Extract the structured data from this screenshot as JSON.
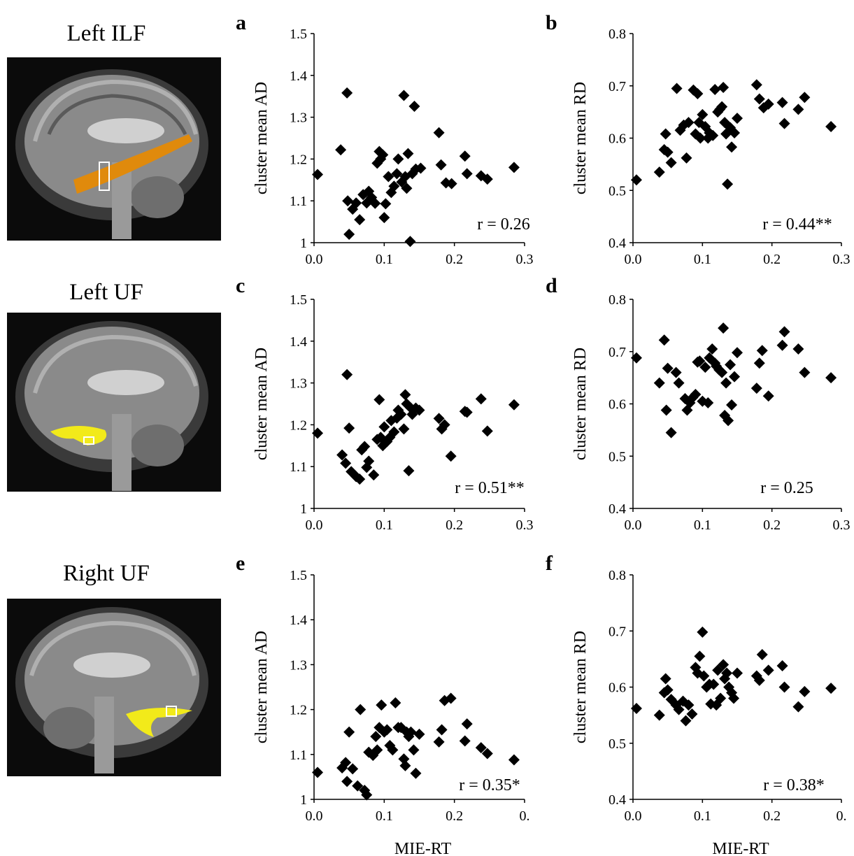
{
  "rows": [
    {
      "title": "Left ILF",
      "tract_color": "#e08a0c"
    },
    {
      "title": "Left UF",
      "tract_color": "#f2ea1a"
    },
    {
      "title": "Right UF",
      "tract_color": "#f2ea1a"
    }
  ],
  "chart_data": [
    {
      "id": "a",
      "type": "scatter",
      "title": "",
      "xlabel": "",
      "ylabel": "cluster mean AD",
      "annotation": "r = 0.26",
      "xlim": [
        0,
        0.3
      ],
      "ylim": [
        1,
        1.5
      ],
      "xticks": [
        "0.0",
        "0.1",
        "0.2",
        "0.3"
      ],
      "yticks": [
        "1",
        "1.1",
        "1.2",
        "1.3",
        "1.4",
        "1.5"
      ],
      "points": [
        [
          0.005,
          1.163
        ],
        [
          0.038,
          1.222
        ],
        [
          0.047,
          1.358
        ],
        [
          0.048,
          1.1
        ],
        [
          0.05,
          1.02
        ],
        [
          0.055,
          1.08
        ],
        [
          0.06,
          1.095
        ],
        [
          0.065,
          1.055
        ],
        [
          0.07,
          1.115
        ],
        [
          0.075,
          1.095
        ],
        [
          0.078,
          1.123
        ],
        [
          0.082,
          1.108
        ],
        [
          0.087,
          1.094
        ],
        [
          0.09,
          1.19
        ],
        [
          0.093,
          1.218
        ],
        [
          0.095,
          1.2
        ],
        [
          0.098,
          1.21
        ],
        [
          0.1,
          1.06
        ],
        [
          0.102,
          1.093
        ],
        [
          0.106,
          1.158
        ],
        [
          0.11,
          1.12
        ],
        [
          0.114,
          1.135
        ],
        [
          0.118,
          1.165
        ],
        [
          0.12,
          1.2
        ],
        [
          0.125,
          1.145
        ],
        [
          0.128,
          1.352
        ],
        [
          0.13,
          1.158
        ],
        [
          0.132,
          1.13
        ],
        [
          0.134,
          1.213
        ],
        [
          0.137,
          1.003
        ],
        [
          0.14,
          1.165
        ],
        [
          0.143,
          1.326
        ],
        [
          0.145,
          1.176
        ],
        [
          0.152,
          1.178
        ],
        [
          0.178,
          1.263
        ],
        [
          0.181,
          1.186
        ],
        [
          0.188,
          1.143
        ],
        [
          0.196,
          1.141
        ],
        [
          0.215,
          1.207
        ],
        [
          0.218,
          1.165
        ],
        [
          0.238,
          1.16
        ],
        [
          0.247,
          1.152
        ],
        [
          0.285,
          1.18
        ]
      ]
    },
    {
      "id": "b",
      "type": "scatter",
      "title": "",
      "xlabel": "",
      "ylabel": "cluster mean RD",
      "annotation": "r = 0.44**",
      "xlim": [
        0,
        0.3
      ],
      "ylim": [
        0.4,
        0.8
      ],
      "xticks": [
        "0.0",
        "0.1",
        "0.2",
        "0.3"
      ],
      "yticks": [
        "0.4",
        "0.5",
        "0.6",
        "0.7",
        "0.8"
      ],
      "points": [
        [
          0.005,
          0.52
        ],
        [
          0.038,
          0.535
        ],
        [
          0.045,
          0.578
        ],
        [
          0.047,
          0.608
        ],
        [
          0.05,
          0.573
        ],
        [
          0.055,
          0.553
        ],
        [
          0.063,
          0.695
        ],
        [
          0.068,
          0.615
        ],
        [
          0.073,
          0.625
        ],
        [
          0.077,
          0.562
        ],
        [
          0.08,
          0.63
        ],
        [
          0.087,
          0.692
        ],
        [
          0.09,
          0.608
        ],
        [
          0.093,
          0.685
        ],
        [
          0.095,
          0.63
        ],
        [
          0.097,
          0.6
        ],
        [
          0.1,
          0.645
        ],
        [
          0.104,
          0.622
        ],
        [
          0.108,
          0.6
        ],
        [
          0.11,
          0.61
        ],
        [
          0.115,
          0.605
        ],
        [
          0.118,
          0.693
        ],
        [
          0.122,
          0.65
        ],
        [
          0.125,
          0.655
        ],
        [
          0.128,
          0.66
        ],
        [
          0.13,
          0.697
        ],
        [
          0.132,
          0.63
        ],
        [
          0.134,
          0.608
        ],
        [
          0.136,
          0.512
        ],
        [
          0.14,
          0.62
        ],
        [
          0.142,
          0.583
        ],
        [
          0.146,
          0.61
        ],
        [
          0.15,
          0.638
        ],
        [
          0.178,
          0.702
        ],
        [
          0.182,
          0.675
        ],
        [
          0.188,
          0.658
        ],
        [
          0.195,
          0.665
        ],
        [
          0.215,
          0.668
        ],
        [
          0.218,
          0.628
        ],
        [
          0.238,
          0.655
        ],
        [
          0.247,
          0.678
        ],
        [
          0.285,
          0.622
        ]
      ]
    },
    {
      "id": "c",
      "type": "scatter",
      "title": "",
      "xlabel": "",
      "ylabel": "cluster mean AD",
      "annotation": "r = 0.51**",
      "xlim": [
        0,
        0.3
      ],
      "ylim": [
        1,
        1.5
      ],
      "xticks": [
        "0.0",
        "0.1",
        "0.2",
        "0.3"
      ],
      "yticks": [
        "1",
        "1.1",
        "1.2",
        "1.3",
        "1.4",
        "1.5"
      ],
      "points": [
        [
          0.005,
          1.18
        ],
        [
          0.04,
          1.128
        ],
        [
          0.045,
          1.108
        ],
        [
          0.047,
          1.32
        ],
        [
          0.05,
          1.192
        ],
        [
          0.053,
          1.088
        ],
        [
          0.06,
          1.076
        ],
        [
          0.065,
          1.07
        ],
        [
          0.068,
          1.14
        ],
        [
          0.072,
          1.148
        ],
        [
          0.075,
          1.098
        ],
        [
          0.078,
          1.113
        ],
        [
          0.085,
          1.08
        ],
        [
          0.09,
          1.165
        ],
        [
          0.093,
          1.26
        ],
        [
          0.095,
          1.17
        ],
        [
          0.098,
          1.15
        ],
        [
          0.1,
          1.195
        ],
        [
          0.104,
          1.16
        ],
        [
          0.108,
          1.17
        ],
        [
          0.11,
          1.21
        ],
        [
          0.114,
          1.183
        ],
        [
          0.118,
          1.216
        ],
        [
          0.12,
          1.235
        ],
        [
          0.124,
          1.225
        ],
        [
          0.128,
          1.19
        ],
        [
          0.13,
          1.272
        ],
        [
          0.132,
          1.25
        ],
        [
          0.135,
          1.09
        ],
        [
          0.138,
          1.24
        ],
        [
          0.14,
          1.225
        ],
        [
          0.145,
          1.24
        ],
        [
          0.15,
          1.235
        ],
        [
          0.178,
          1.215
        ],
        [
          0.182,
          1.19
        ],
        [
          0.186,
          1.2
        ],
        [
          0.195,
          1.125
        ],
        [
          0.215,
          1.232
        ],
        [
          0.218,
          1.23
        ],
        [
          0.238,
          1.262
        ],
        [
          0.247,
          1.185
        ],
        [
          0.285,
          1.248
        ]
      ]
    },
    {
      "id": "d",
      "type": "scatter",
      "title": "",
      "xlabel": "",
      "ylabel": "cluster mean RD",
      "annotation": "r = 0.25",
      "xlim": [
        0,
        0.3
      ],
      "ylim": [
        0.4,
        0.8
      ],
      "xticks": [
        "0.0",
        "0.1",
        "0.2",
        "0.3"
      ],
      "yticks": [
        "0.4",
        "0.5",
        "0.6",
        "0.7",
        "0.8"
      ],
      "points": [
        [
          0.005,
          0.688
        ],
        [
          0.038,
          0.64
        ],
        [
          0.045,
          0.722
        ],
        [
          0.048,
          0.588
        ],
        [
          0.05,
          0.668
        ],
        [
          0.055,
          0.545
        ],
        [
          0.062,
          0.66
        ],
        [
          0.066,
          0.64
        ],
        [
          0.075,
          0.61
        ],
        [
          0.078,
          0.588
        ],
        [
          0.082,
          0.602
        ],
        [
          0.086,
          0.612
        ],
        [
          0.09,
          0.618
        ],
        [
          0.093,
          0.68
        ],
        [
          0.096,
          0.682
        ],
        [
          0.1,
          0.605
        ],
        [
          0.104,
          0.67
        ],
        [
          0.108,
          0.602
        ],
        [
          0.11,
          0.688
        ],
        [
          0.114,
          0.705
        ],
        [
          0.118,
          0.678
        ],
        [
          0.12,
          0.672
        ],
        [
          0.124,
          0.665
        ],
        [
          0.128,
          0.66
        ],
        [
          0.13,
          0.745
        ],
        [
          0.132,
          0.578
        ],
        [
          0.134,
          0.64
        ],
        [
          0.137,
          0.568
        ],
        [
          0.14,
          0.675
        ],
        [
          0.142,
          0.598
        ],
        [
          0.146,
          0.652
        ],
        [
          0.15,
          0.698
        ],
        [
          0.178,
          0.63
        ],
        [
          0.182,
          0.678
        ],
        [
          0.186,
          0.702
        ],
        [
          0.195,
          0.615
        ],
        [
          0.215,
          0.712
        ],
        [
          0.218,
          0.738
        ],
        [
          0.238,
          0.705
        ],
        [
          0.247,
          0.66
        ],
        [
          0.285,
          0.65
        ]
      ]
    },
    {
      "id": "e",
      "type": "scatter",
      "title": "",
      "xlabel": "MIE-RT",
      "ylabel": "cluster mean AD",
      "annotation": "r = 0.35*",
      "xlim": [
        0,
        0.3
      ],
      "ylim": [
        1,
        1.5
      ],
      "xticks": [
        "0.0",
        "0.1",
        "0.2",
        "0."
      ],
      "yticks": [
        "1",
        "1.1",
        "1.2",
        "1.3",
        "1.4",
        "1.5"
      ],
      "points": [
        [
          0.005,
          1.06
        ],
        [
          0.04,
          1.07
        ],
        [
          0.045,
          1.082
        ],
        [
          0.047,
          1.04
        ],
        [
          0.05,
          1.15
        ],
        [
          0.055,
          1.068
        ],
        [
          0.062,
          1.03
        ],
        [
          0.066,
          1.2
        ],
        [
          0.072,
          1.02
        ],
        [
          0.075,
          1.01
        ],
        [
          0.078,
          1.105
        ],
        [
          0.084,
          1.098
        ],
        [
          0.088,
          1.14
        ],
        [
          0.09,
          1.11
        ],
        [
          0.093,
          1.16
        ],
        [
          0.096,
          1.21
        ],
        [
          0.1,
          1.15
        ],
        [
          0.104,
          1.155
        ],
        [
          0.108,
          1.12
        ],
        [
          0.112,
          1.11
        ],
        [
          0.116,
          1.215
        ],
        [
          0.12,
          1.16
        ],
        [
          0.124,
          1.16
        ],
        [
          0.128,
          1.09
        ],
        [
          0.13,
          1.075
        ],
        [
          0.132,
          1.15
        ],
        [
          0.135,
          1.14
        ],
        [
          0.138,
          1.15
        ],
        [
          0.142,
          1.11
        ],
        [
          0.145,
          1.058
        ],
        [
          0.15,
          1.145
        ],
        [
          0.178,
          1.128
        ],
        [
          0.182,
          1.155
        ],
        [
          0.186,
          1.22
        ],
        [
          0.195,
          1.225
        ],
        [
          0.215,
          1.13
        ],
        [
          0.218,
          1.168
        ],
        [
          0.238,
          1.115
        ],
        [
          0.247,
          1.102
        ],
        [
          0.285,
          1.088
        ]
      ]
    },
    {
      "id": "f",
      "type": "scatter",
      "title": "",
      "xlabel": "MIE-RT",
      "ylabel": "cluster mean RD",
      "annotation": "r = 0.38*",
      "xlim": [
        0,
        0.3
      ],
      "ylim": [
        0.4,
        0.8
      ],
      "xticks": [
        "0.0",
        "0.1",
        "0.2",
        "0."
      ],
      "yticks": [
        "0.4",
        "0.5",
        "0.6",
        "0.7",
        "0.8"
      ],
      "points": [
        [
          0.005,
          0.562
        ],
        [
          0.038,
          0.55
        ],
        [
          0.045,
          0.59
        ],
        [
          0.047,
          0.615
        ],
        [
          0.05,
          0.595
        ],
        [
          0.055,
          0.578
        ],
        [
          0.062,
          0.568
        ],
        [
          0.066,
          0.56
        ],
        [
          0.072,
          0.575
        ],
        [
          0.076,
          0.54
        ],
        [
          0.08,
          0.568
        ],
        [
          0.085,
          0.552
        ],
        [
          0.09,
          0.635
        ],
        [
          0.093,
          0.625
        ],
        [
          0.096,
          0.655
        ],
        [
          0.1,
          0.698
        ],
        [
          0.102,
          0.62
        ],
        [
          0.106,
          0.6
        ],
        [
          0.11,
          0.605
        ],
        [
          0.112,
          0.57
        ],
        [
          0.116,
          0.605
        ],
        [
          0.12,
          0.568
        ],
        [
          0.122,
          0.63
        ],
        [
          0.126,
          0.58
        ],
        [
          0.13,
          0.64
        ],
        [
          0.132,
          0.615
        ],
        [
          0.135,
          0.625
        ],
        [
          0.138,
          0.6
        ],
        [
          0.142,
          0.59
        ],
        [
          0.145,
          0.58
        ],
        [
          0.15,
          0.625
        ],
        [
          0.178,
          0.62
        ],
        [
          0.182,
          0.612
        ],
        [
          0.186,
          0.658
        ],
        [
          0.195,
          0.63
        ],
        [
          0.215,
          0.638
        ],
        [
          0.218,
          0.6
        ],
        [
          0.238,
          0.565
        ],
        [
          0.247,
          0.592
        ],
        [
          0.285,
          0.598
        ]
      ]
    }
  ]
}
